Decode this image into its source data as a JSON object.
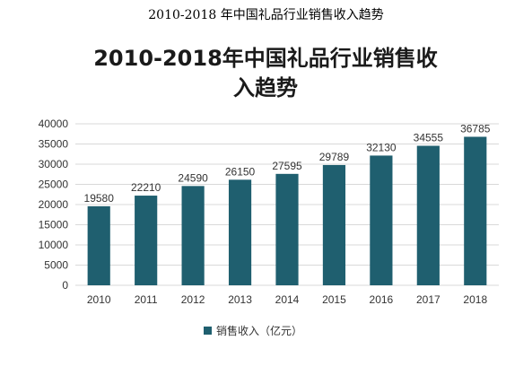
{
  "page": {
    "title": "2010-2018 年中国礼品行业销售收入趋势"
  },
  "chart_data": {
    "type": "bar",
    "title_lines": [
      "2010-2018年中国礼品行业销售收",
      "入趋势"
    ],
    "categories": [
      "2010",
      "2011",
      "2012",
      "2013",
      "2014",
      "2015",
      "2016",
      "2017",
      "2018"
    ],
    "series": [
      {
        "name": "销售收入（亿元）",
        "values": [
          19580,
          22210,
          24590,
          26150,
          27595,
          29789,
          32130,
          34555,
          36785
        ]
      }
    ],
    "data_labels": [
      "19580",
      "22210",
      "24590",
      "26150",
      "27595",
      "29789",
      "32130",
      "34555",
      "36785"
    ],
    "y_ticks": [
      "0",
      "5000",
      "10000",
      "15000",
      "20000",
      "25000",
      "30000",
      "35000",
      "40000"
    ],
    "ylim": [
      0,
      40000
    ],
    "grid": true,
    "legend_position": "bottom",
    "bar_color": "#1f5f6f"
  }
}
